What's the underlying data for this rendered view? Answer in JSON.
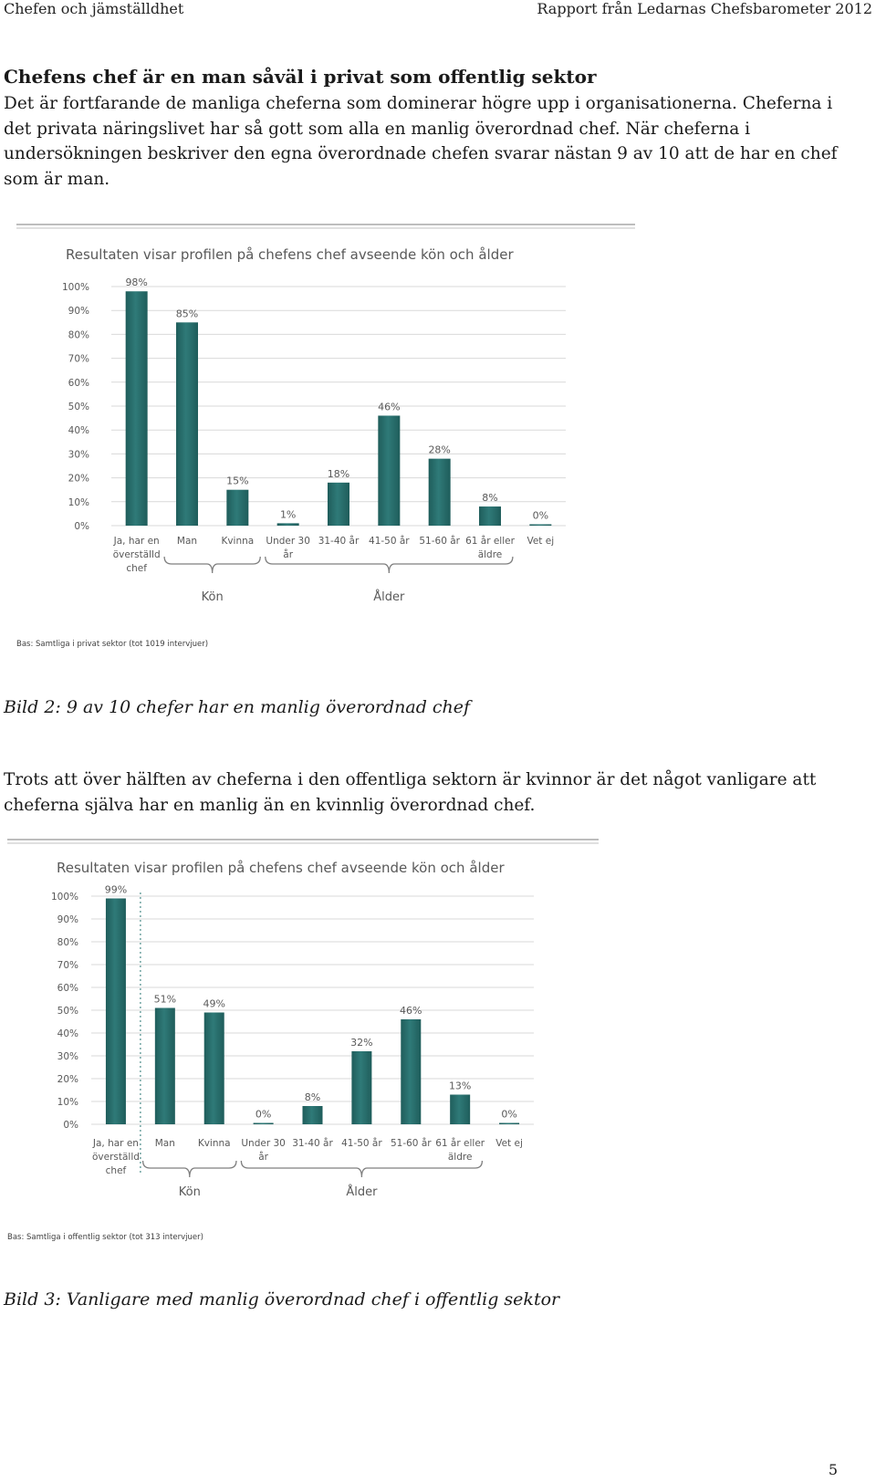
{
  "header": {
    "left": "Chefen och jämställdhet",
    "right": "Rapport från Ledarnas Chefsbarometer 2012"
  },
  "section": {
    "heading": "Chefens chef är en man såväl i privat som offentlig sektor",
    "para1": "Det är fortfarande de manliga cheferna som dominerar högre upp i organisationerna. Cheferna i det privata näringslivet har så gott som alla en manlig överordnad chef. När cheferna i undersökningen beskriver den egna överordnade chefen svarar nästan 9 av 10 att de har en chef som är man.",
    "caption1": "Bild 2: 9 av 10 chefer har en manlig överordnad chef",
    "para2": "Trots att över hälften av cheferna i den offentliga sektorn är kvinnor är det något vanligare att cheferna själva har en manlig än en kvinnlig överordnad chef.",
    "caption2": "Bild 3: Vanligare med manlig överordnad chef i offentlig sektor"
  },
  "page_number": "5",
  "colors": {
    "bar": "#2f7a78",
    "bar_dark": "#1f5d5b",
    "grid": "#d9d9d9",
    "text": "#595959"
  },
  "chart_data": [
    {
      "type": "bar",
      "title": "Resultaten visar profilen på chefens chef avseende kön och ålder",
      "categories": [
        "Ja, har en|överställd|chef",
        "Man",
        "Kvinna",
        "Under 30|år",
        "31-40 år",
        "41-50 år",
        "51-60 år",
        "61 år eller|äldre",
        "Vet ej"
      ],
      "values": [
        98,
        85,
        15,
        1,
        18,
        46,
        28,
        8,
        0
      ],
      "value_labels": [
        "98%",
        "85%",
        "15%",
        "1%",
        "18%",
        "46%",
        "28%",
        "8%",
        "0%"
      ],
      "yticks": [
        "0%",
        "10%",
        "20%",
        "30%",
        "40%",
        "50%",
        "60%",
        "70%",
        "80%",
        "90%",
        "100%"
      ],
      "ylim": [
        0,
        100
      ],
      "groups": [
        {
          "label": "Kön",
          "from": 1,
          "to": 2
        },
        {
          "label": "Ålder",
          "from": 3,
          "to": 7
        }
      ],
      "note": "Bas: Samtliga i privat sektor (tot 1019 intervjuer)",
      "grid": true,
      "separator_after_first": false
    },
    {
      "type": "bar",
      "title": "Resultaten visar profilen på chefens chef avseende kön och ålder",
      "categories": [
        "Ja, har en|överställd|chef",
        "Man",
        "Kvinna",
        "Under 30|år",
        "31-40 år",
        "41-50 år",
        "51-60 år",
        "61 år eller|äldre",
        "Vet ej"
      ],
      "values": [
        99,
        51,
        49,
        0,
        8,
        32,
        46,
        13,
        0
      ],
      "value_labels": [
        "99%",
        "51%",
        "49%",
        "0%",
        "8%",
        "32%",
        "46%",
        "13%",
        "0%"
      ],
      "yticks": [
        "0%",
        "10%",
        "20%",
        "30%",
        "40%",
        "50%",
        "60%",
        "70%",
        "80%",
        "90%",
        "100%"
      ],
      "ylim": [
        0,
        100
      ],
      "groups": [
        {
          "label": "Kön",
          "from": 1,
          "to": 2
        },
        {
          "label": "Ålder",
          "from": 3,
          "to": 7
        }
      ],
      "note": "Bas: Samtliga i offentlig sektor (tot 313 intervjuer)",
      "grid": true,
      "separator_after_first": true
    }
  ]
}
